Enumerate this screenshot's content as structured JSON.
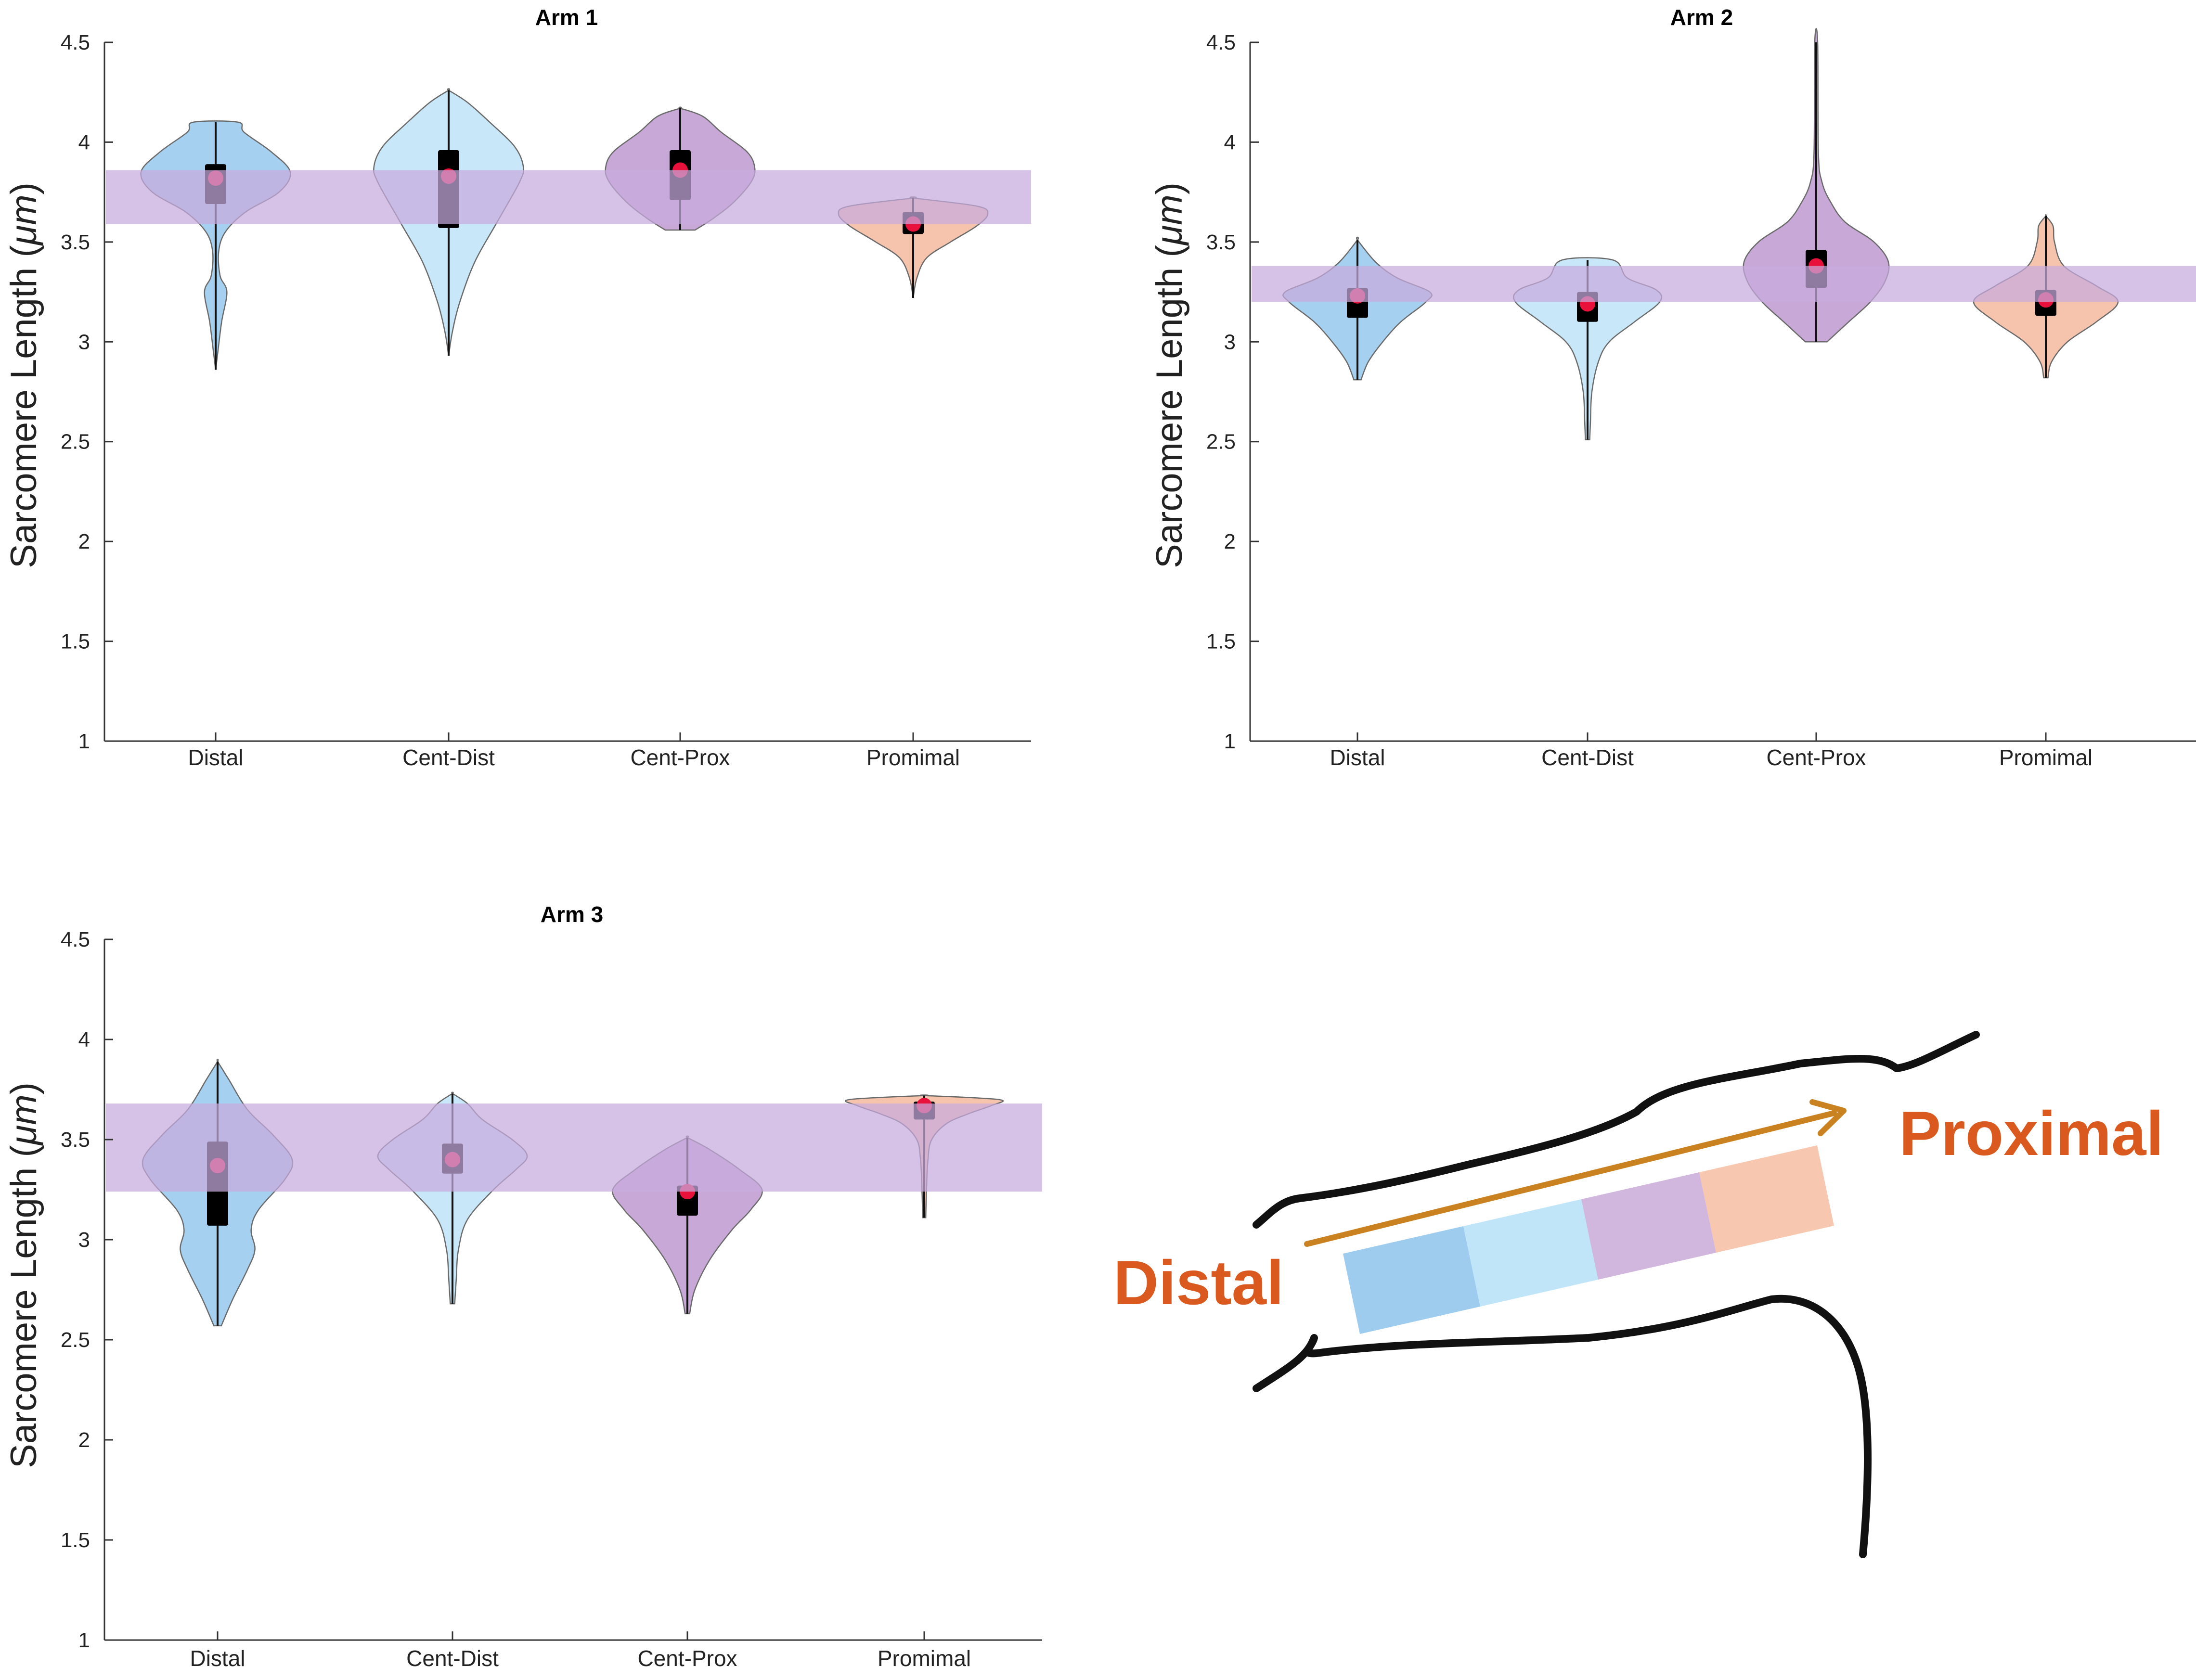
{
  "colors": {
    "distal": "#8dc3ec",
    "cent_dist": "#b9e2f7",
    "cent_prox": "#b88fcb",
    "proximal": "#f4b496",
    "band": "#c7aade",
    "mean_dot": "#e8113c",
    "annotation": "#d9591f",
    "arrow": "#c9821f"
  },
  "chart_data": [
    {
      "type": "violin",
      "title": "Arm 1",
      "xlabel": "",
      "ylabel_text": "Sarcomere Length (",
      "ylabel_unit": "μm",
      "ylabel_close": ")",
      "ylim": [
        1,
        4.5
      ],
      "yticks": [
        "1",
        "1.5",
        "2",
        "2.5",
        "3",
        "3.5",
        "4",
        "4.5"
      ],
      "categories": [
        "Distal",
        "Cent-Dist",
        "Cent-Prox",
        "Promimal"
      ],
      "band": [
        3.59,
        3.86
      ],
      "series": [
        {
          "name": "Distal",
          "min": 2.86,
          "max": 4.1,
          "q1": 3.69,
          "q3": 3.89,
          "mean": 3.82,
          "profile": [
            [
              2.86,
              0.0
            ],
            [
              2.95,
              0.03
            ],
            [
              3.1,
              0.08
            ],
            [
              3.25,
              0.15
            ],
            [
              3.33,
              0.06
            ],
            [
              3.45,
              0.04
            ],
            [
              3.55,
              0.13
            ],
            [
              3.65,
              0.4
            ],
            [
              3.75,
              0.85
            ],
            [
              3.85,
              1.0
            ],
            [
              3.95,
              0.75
            ],
            [
              4.05,
              0.38
            ],
            [
              4.1,
              0.3
            ]
          ]
        },
        {
          "name": "Cent-Dist",
          "min": 2.93,
          "max": 4.26,
          "q1": 3.57,
          "q3": 3.96,
          "mean": 3.83,
          "profile": [
            [
              2.93,
              0.0
            ],
            [
              3.05,
              0.05
            ],
            [
              3.2,
              0.15
            ],
            [
              3.4,
              0.35
            ],
            [
              3.6,
              0.65
            ],
            [
              3.8,
              0.95
            ],
            [
              3.88,
              1.0
            ],
            [
              3.98,
              0.88
            ],
            [
              4.1,
              0.55
            ],
            [
              4.2,
              0.25
            ],
            [
              4.26,
              0.0
            ]
          ]
        },
        {
          "name": "Cent-Prox",
          "min": 3.56,
          "max": 4.17,
          "q1": 3.71,
          "q3": 3.96,
          "mean": 3.86,
          "profile": [
            [
              3.56,
              0.2
            ],
            [
              3.62,
              0.45
            ],
            [
              3.7,
              0.72
            ],
            [
              3.8,
              0.95
            ],
            [
              3.87,
              1.0
            ],
            [
              3.95,
              0.9
            ],
            [
              4.05,
              0.55
            ],
            [
              4.13,
              0.3
            ],
            [
              4.17,
              0.0
            ]
          ]
        },
        {
          "name": "Promimal",
          "min": 3.22,
          "max": 3.72,
          "q1": 3.54,
          "q3": 3.65,
          "mean": 3.59,
          "profile": [
            [
              3.22,
              0.0
            ],
            [
              3.32,
              0.05
            ],
            [
              3.42,
              0.18
            ],
            [
              3.5,
              0.5
            ],
            [
              3.58,
              0.85
            ],
            [
              3.64,
              1.0
            ],
            [
              3.68,
              0.85
            ],
            [
              3.72,
              0.0
            ]
          ]
        }
      ]
    },
    {
      "type": "violin",
      "title": "Arm 2",
      "xlabel": "",
      "ylabel_text": "Sarcomere Length (",
      "ylabel_unit": "μm",
      "ylabel_close": ")",
      "ylim": [
        1,
        4.5
      ],
      "yticks": [
        "1",
        "1.5",
        "2",
        "2.5",
        "3",
        "3.5",
        "4",
        "4.5"
      ],
      "categories": [
        "Distal",
        "Cent-Dist",
        "Cent-Prox",
        "Promimal"
      ],
      "band": [
        3.2,
        3.38
      ],
      "series": [
        {
          "name": "Distal",
          "min": 2.81,
          "max": 3.51,
          "q1": 3.12,
          "q3": 3.27,
          "mean": 3.23,
          "profile": [
            [
              2.81,
              0.05
            ],
            [
              2.9,
              0.15
            ],
            [
              3.0,
              0.35
            ],
            [
              3.1,
              0.6
            ],
            [
              3.2,
              0.95
            ],
            [
              3.25,
              1.0
            ],
            [
              3.32,
              0.55
            ],
            [
              3.4,
              0.25
            ],
            [
              3.51,
              0.0
            ]
          ]
        },
        {
          "name": "Cent-Dist",
          "min": 2.51,
          "max": 3.41,
          "q1": 3.1,
          "q3": 3.25,
          "mean": 3.19,
          "profile": [
            [
              2.51,
              0.03
            ],
            [
              2.6,
              0.04
            ],
            [
              2.75,
              0.06
            ],
            [
              2.9,
              0.15
            ],
            [
              3.0,
              0.3
            ],
            [
              3.1,
              0.65
            ],
            [
              3.2,
              1.0
            ],
            [
              3.26,
              0.95
            ],
            [
              3.32,
              0.55
            ],
            [
              3.41,
              0.35
            ]
          ]
        },
        {
          "name": "Cent-Prox",
          "min": 3.0,
          "max": 4.5,
          "q1": 3.27,
          "q3": 3.46,
          "mean": 3.38,
          "profile": [
            [
              3.0,
              0.15
            ],
            [
              3.1,
              0.45
            ],
            [
              3.2,
              0.75
            ],
            [
              3.3,
              0.95
            ],
            [
              3.4,
              1.0
            ],
            [
              3.5,
              0.8
            ],
            [
              3.6,
              0.4
            ],
            [
              3.7,
              0.2
            ],
            [
              3.8,
              0.08
            ],
            [
              3.95,
              0.03
            ],
            [
              4.5,
              0.02
            ]
          ]
        },
        {
          "name": "Promimal",
          "min": 2.82,
          "max": 3.63,
          "q1": 3.13,
          "q3": 3.26,
          "mean": 3.21,
          "profile": [
            [
              2.82,
              0.03
            ],
            [
              2.9,
              0.08
            ],
            [
              3.0,
              0.3
            ],
            [
              3.1,
              0.7
            ],
            [
              3.2,
              1.0
            ],
            [
              3.28,
              0.7
            ],
            [
              3.38,
              0.25
            ],
            [
              3.5,
              0.12
            ],
            [
              3.58,
              0.1
            ],
            [
              3.63,
              0.0
            ]
          ]
        }
      ]
    },
    {
      "type": "violin",
      "title": "Arm 3",
      "xlabel": "",
      "ylabel_text": "Sarcomere Length (",
      "ylabel_unit": "μm",
      "ylabel_close": ")",
      "ylim": [
        1,
        4.5
      ],
      "yticks": [
        "1",
        "1.5",
        "2",
        "2.5",
        "3",
        "3.5",
        "4",
        "4.5"
      ],
      "categories": [
        "Distal",
        "Cent-Dist",
        "Cent-Prox",
        "Promimal"
      ],
      "band": [
        3.24,
        3.68
      ],
      "series": [
        {
          "name": "Distal",
          "min": 2.57,
          "max": 3.89,
          "q1": 3.07,
          "q3": 3.49,
          "mean": 3.37,
          "profile": [
            [
              2.57,
              0.05
            ],
            [
              2.7,
              0.2
            ],
            [
              2.85,
              0.4
            ],
            [
              2.95,
              0.5
            ],
            [
              3.05,
              0.45
            ],
            [
              3.15,
              0.55
            ],
            [
              3.3,
              0.9
            ],
            [
              3.4,
              1.0
            ],
            [
              3.52,
              0.75
            ],
            [
              3.65,
              0.4
            ],
            [
              3.8,
              0.15
            ],
            [
              3.89,
              0.0
            ]
          ]
        },
        {
          "name": "Cent-Dist",
          "min": 2.68,
          "max": 3.73,
          "q1": 3.33,
          "q3": 3.48,
          "mean": 3.4,
          "profile": [
            [
              2.68,
              0.03
            ],
            [
              2.8,
              0.05
            ],
            [
              2.95,
              0.08
            ],
            [
              3.1,
              0.2
            ],
            [
              3.25,
              0.55
            ],
            [
              3.35,
              0.85
            ],
            [
              3.42,
              1.0
            ],
            [
              3.5,
              0.8
            ],
            [
              3.6,
              0.4
            ],
            [
              3.68,
              0.2
            ],
            [
              3.73,
              0.0
            ]
          ]
        },
        {
          "name": "Cent-Prox",
          "min": 2.63,
          "max": 3.51,
          "q1": 3.12,
          "q3": 3.27,
          "mean": 3.24,
          "profile": [
            [
              2.63,
              0.03
            ],
            [
              2.75,
              0.1
            ],
            [
              2.9,
              0.3
            ],
            [
              3.05,
              0.6
            ],
            [
              3.15,
              0.85
            ],
            [
              3.25,
              1.0
            ],
            [
              3.35,
              0.7
            ],
            [
              3.45,
              0.3
            ],
            [
              3.51,
              0.0
            ]
          ]
        },
        {
          "name": "Promimal",
          "min": 3.11,
          "max": 3.72,
          "q1": 3.6,
          "q3": 3.69,
          "mean": 3.67,
          "profile": [
            [
              3.11,
              0.02
            ],
            [
              3.25,
              0.03
            ],
            [
              3.4,
              0.05
            ],
            [
              3.5,
              0.1
            ],
            [
              3.58,
              0.3
            ],
            [
              3.63,
              0.6
            ],
            [
              3.67,
              0.9
            ],
            [
              3.7,
              1.0
            ],
            [
              3.72,
              0.0
            ]
          ]
        }
      ]
    }
  ],
  "diagram": {
    "distal_label": "Distal",
    "proximal_label": "Proximal"
  }
}
